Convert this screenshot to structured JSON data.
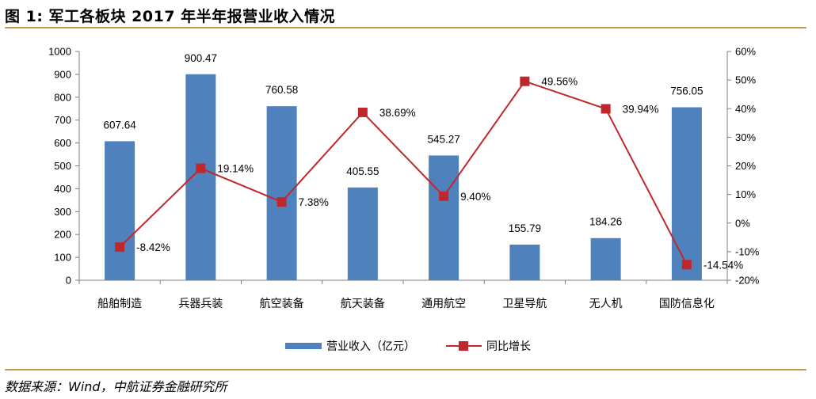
{
  "header": {
    "figure_title": "图 1:  军工各板块 2017 年半年报营业收入情况"
  },
  "footer": {
    "source": "数据来源：Wind，中航证券金融研究所"
  },
  "colors": {
    "bar": "#4f81bd",
    "line": "#c0272d",
    "rule": "#c59d4a"
  },
  "chart_data": {
    "type": "bar",
    "title": "军工各板块 2017 年半年报营业收入情况",
    "categories": [
      "船舶制造",
      "兵器兵装",
      "航空装备",
      "航天装备",
      "通用航空",
      "卫星导航",
      "无人机",
      "国防信息化"
    ],
    "series": [
      {
        "name": "营业收入（亿元）",
        "kind": "bar",
        "axis": "left",
        "values": [
          607.64,
          900.47,
          760.58,
          405.55,
          545.27,
          155.79,
          184.26,
          756.05
        ],
        "labels": [
          "607.64",
          "900.47",
          "760.58",
          "405.55",
          "545.27",
          "155.79",
          "184.26",
          "756.05"
        ]
      },
      {
        "name": "同比增长",
        "kind": "line",
        "axis": "right",
        "values": [
          -8.42,
          19.14,
          7.38,
          38.69,
          9.4,
          49.56,
          39.94,
          -14.54
        ],
        "labels": [
          "-8.42%",
          "19.14%",
          "7.38%",
          "38.69%",
          "9.40%",
          "49.56%",
          "39.94%",
          "-14.54%"
        ]
      }
    ],
    "left_axis": {
      "range": [
        0,
        1000
      ],
      "ticks": [
        0,
        100,
        200,
        300,
        400,
        500,
        600,
        700,
        800,
        900,
        1000
      ],
      "tick_labels": [
        "0",
        "100",
        "200",
        "300",
        "400",
        "500",
        "600",
        "700",
        "800",
        "900",
        "1000"
      ]
    },
    "right_axis": {
      "range": [
        -20,
        60
      ],
      "ticks": [
        -20,
        -10,
        0,
        10,
        20,
        30,
        40,
        50,
        60
      ],
      "tick_labels": [
        "-20%",
        "-10%",
        "0%",
        "10%",
        "20%",
        "30%",
        "40%",
        "50%",
        "60%"
      ]
    },
    "grid": false,
    "legend_position": "bottom-center"
  }
}
